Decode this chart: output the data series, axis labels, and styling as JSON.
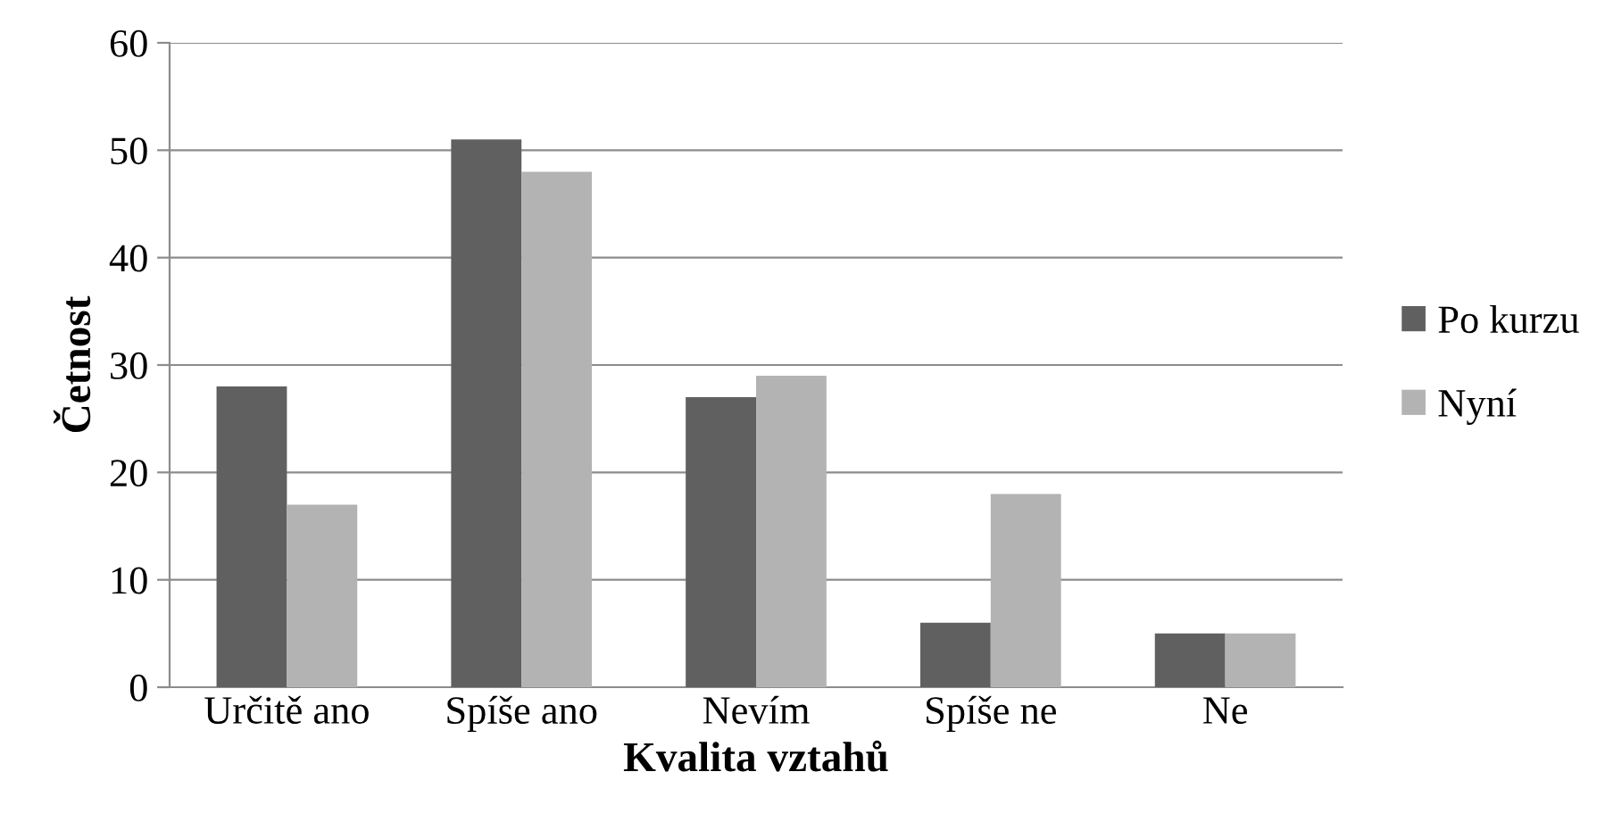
{
  "chart_data": {
    "type": "bar",
    "xlabel": "Kvalita vztahů",
    "ylabel": "Četnost",
    "categories": [
      "Určitě ano",
      "Spíše ano",
      "Nevím",
      "Spíše ne",
      "Ne"
    ],
    "series": [
      {
        "name": "Po kurzu",
        "color": "#606060",
        "values": [
          28,
          51,
          27,
          6,
          5
        ]
      },
      {
        "name": "Nyní",
        "color": "#b3b3b3",
        "values": [
          17,
          48,
          29,
          18,
          5
        ]
      }
    ],
    "ylim": [
      0,
      60
    ],
    "yticks": [
      0,
      10,
      20,
      30,
      40,
      50,
      60
    ],
    "grid": "y",
    "legend": "right"
  }
}
